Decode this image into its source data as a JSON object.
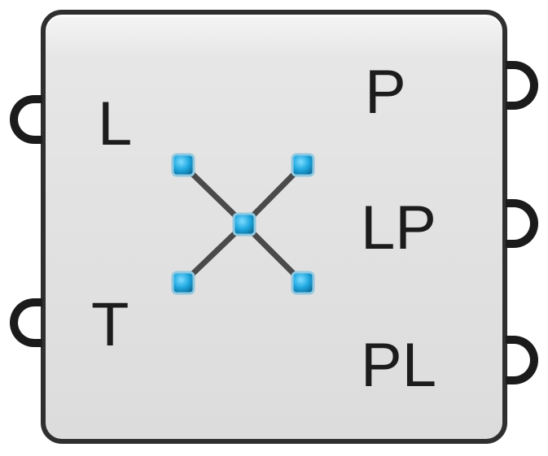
{
  "component": {
    "inputs": [
      {
        "label": "L"
      },
      {
        "label": "T"
      }
    ],
    "outputs": [
      {
        "label": "P"
      },
      {
        "label": "LP"
      },
      {
        "label": "PL"
      }
    ],
    "icon": "crossed-lines-points-icon",
    "colors": {
      "body_fill": "#dcdcdc",
      "border": "#2f2f2f",
      "point_fill": "#1fa8e0",
      "line": "#4a4a4a"
    }
  }
}
